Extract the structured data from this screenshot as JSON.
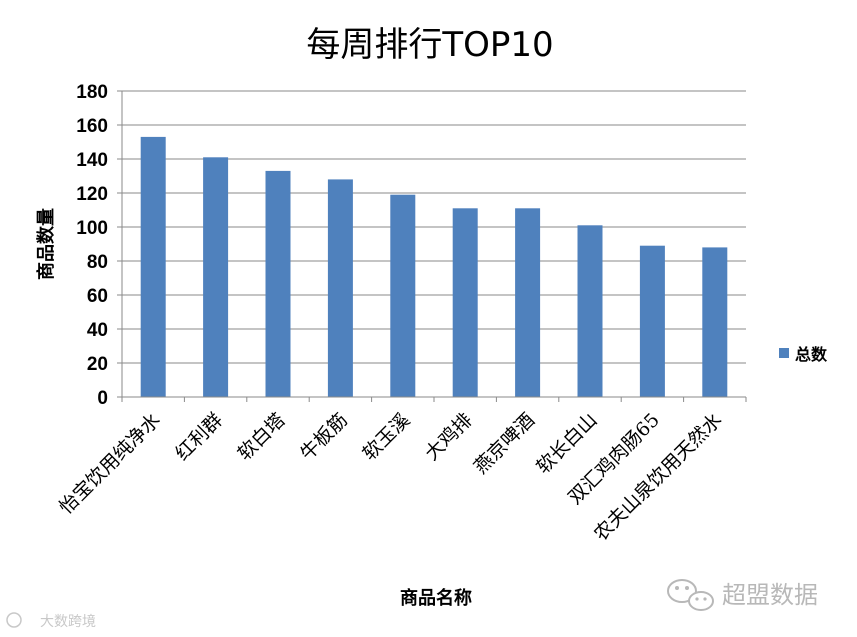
{
  "chart_data": {
    "type": "bar",
    "title": "每周排行TOP10",
    "xlabel": "商品名称",
    "ylabel": "商品数量",
    "categories": [
      "怡宝饮用纯净水",
      "红利群",
      "软白塔",
      "牛板筋",
      "软玉溪",
      "大鸡排",
      "燕京啤酒",
      "软长白山",
      "双汇鸡肉肠65",
      "农夫山泉饮用天然水"
    ],
    "series": [
      {
        "name": "总数",
        "values": [
          153,
          141,
          133,
          128,
          119,
          111,
          111,
          101,
          89,
          88
        ],
        "color": "#4f81bd"
      }
    ],
    "ylim": [
      0,
      180
    ],
    "yticks": [
      0,
      20,
      40,
      60,
      80,
      100,
      120,
      140,
      160,
      180
    ],
    "grid": true,
    "legend_position": "right"
  },
  "watermarks": {
    "bottom_right": "超盟数据",
    "bottom_left": "大数跨境",
    "icon": "wechat-icon"
  }
}
